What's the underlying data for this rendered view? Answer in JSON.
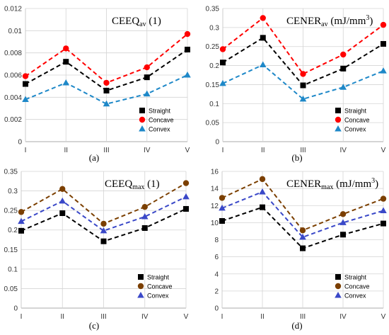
{
  "chart_data": [
    {
      "type": "line",
      "title": "CEEQav (1)",
      "title_main": "CEEQ",
      "title_sub": "av",
      "title_unit": " (1)",
      "caption": "(a)",
      "categories": [
        "I",
        "II",
        "III",
        "IV",
        "V"
      ],
      "ylim": [
        0,
        0.012
      ],
      "yticks": [
        "0",
        "0.002",
        "0.004",
        "0.006",
        "0.008",
        "0.01",
        "0.012"
      ],
      "grid": true,
      "legend": "bottom-right",
      "series": [
        {
          "name": "Straight",
          "values": [
            0.0052,
            0.0072,
            0.0046,
            0.0058,
            0.0083
          ],
          "color": "#000000",
          "marker": "square"
        },
        {
          "name": "Concave",
          "values": [
            0.0059,
            0.0084,
            0.0053,
            0.0067,
            0.0097
          ],
          "color": "#ff0000",
          "marker": "circle"
        },
        {
          "name": "Convex",
          "values": [
            0.0038,
            0.0053,
            0.0034,
            0.0043,
            0.006
          ],
          "color": "#1e88c8",
          "marker": "triangle"
        }
      ]
    },
    {
      "type": "line",
      "title": "CENERav (mJ/mm3)",
      "title_main": "CENER",
      "title_sub": "av",
      "title_unit": " (mJ/mm",
      "title_sup": "3",
      "title_end": ")",
      "caption": "(b)",
      "categories": [
        "I",
        "II",
        "III",
        "IV",
        "V"
      ],
      "ylim": [
        0,
        0.35
      ],
      "yticks": [
        "0",
        "0.05",
        "0.1",
        "0.15",
        "0.2",
        "0.25",
        "0.3",
        "0.35"
      ],
      "grid": true,
      "legend": "bottom-right",
      "series": [
        {
          "name": "Straight",
          "values": [
            0.208,
            0.273,
            0.148,
            0.192,
            0.257
          ],
          "color": "#000000",
          "marker": "square"
        },
        {
          "name": "Concave",
          "values": [
            0.243,
            0.325,
            0.178,
            0.229,
            0.307
          ],
          "color": "#ff0000",
          "marker": "circle"
        },
        {
          "name": "Convex",
          "values": [
            0.153,
            0.202,
            0.112,
            0.143,
            0.186
          ],
          "color": "#1e88c8",
          "marker": "triangle"
        }
      ]
    },
    {
      "type": "line",
      "title": "CEEQmax (1)",
      "title_main": "CEEQ",
      "title_sub": "max",
      "title_unit": " (1)",
      "caption": "(c)",
      "categories": [
        "I",
        "II",
        "III",
        "IV",
        "V"
      ],
      "ylim": [
        0,
        0.35
      ],
      "yticks": [
        "0",
        "0.05",
        "0.1",
        "0.15",
        "0.2",
        "0.25",
        "0.3",
        "0.35"
      ],
      "grid": true,
      "legend": "bottom-right",
      "series": [
        {
          "name": "Straight",
          "values": [
            0.198,
            0.243,
            0.171,
            0.205,
            0.254
          ],
          "color": "#000000",
          "marker": "square"
        },
        {
          "name": "Concave",
          "values": [
            0.246,
            0.305,
            0.216,
            0.259,
            0.32
          ],
          "color": "#7b3f00",
          "marker": "circle"
        },
        {
          "name": "Convex",
          "values": [
            0.222,
            0.274,
            0.198,
            0.234,
            0.285
          ],
          "color": "#3a48c8",
          "marker": "triangle"
        }
      ]
    },
    {
      "type": "line",
      "title": "CENERmax (mJ/mm3)",
      "title_main": "CENER",
      "title_sub": "max",
      "title_unit": " (mJ/mm",
      "title_sup": "3",
      "title_end": ")",
      "caption": "(d)",
      "categories": [
        "I",
        "II",
        "III",
        "IV",
        "V"
      ],
      "ylim": [
        0,
        16
      ],
      "yticks": [
        "0",
        "2",
        "4",
        "6",
        "8",
        "10",
        "12",
        "14",
        "16"
      ],
      "grid": true,
      "legend": "bottom-right",
      "series": [
        {
          "name": "Straight",
          "values": [
            10.2,
            11.8,
            7.0,
            8.6,
            9.9
          ],
          "color": "#000000",
          "marker": "square"
        },
        {
          "name": "Concave",
          "values": [
            12.9,
            15.1,
            9.1,
            11.0,
            12.8
          ],
          "color": "#7b3f00",
          "marker": "circle"
        },
        {
          "name": "Convex",
          "values": [
            11.7,
            13.6,
            8.3,
            10.0,
            11.4
          ],
          "color": "#3a48c8",
          "marker": "triangle"
        }
      ]
    }
  ]
}
